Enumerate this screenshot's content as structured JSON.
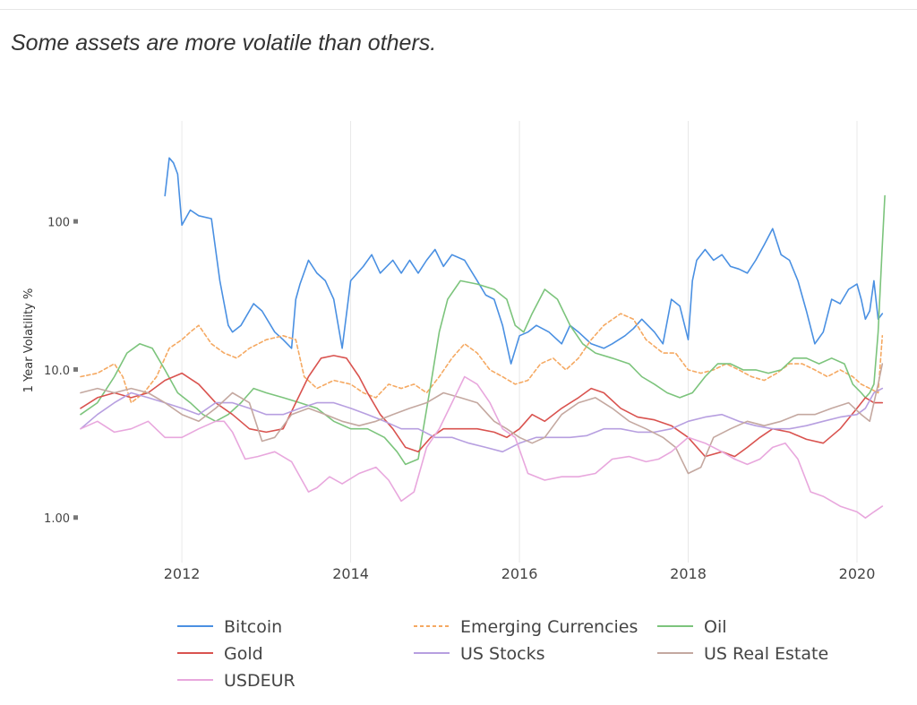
{
  "headline": "Some assets are more volatile than others.",
  "chart_data": {
    "type": "line",
    "title": "",
    "xlabel": "",
    "ylabel": "1 Year Volatility %",
    "yscale": "log",
    "xlim": [
      2010.8,
      2020.35
    ],
    "ylim": [
      0.5,
      480
    ],
    "xticks": [
      2012,
      2014,
      2016,
      2018,
      2020
    ],
    "xtick_labels": [
      "2012",
      "2014",
      "2016",
      "2018",
      "2020"
    ],
    "yticks": [
      1,
      10,
      100
    ],
    "ytick_labels": [
      "1.00",
      "10.0",
      "100"
    ],
    "grid": "vertical",
    "legend_position": "bottom",
    "series": [
      {
        "name": "Bitcoin",
        "color": "#4a90e2",
        "dash": "solid",
        "x": [
          2011.8,
          2011.85,
          2011.9,
          2011.95,
          2012.0,
          2012.1,
          2012.2,
          2012.35,
          2012.45,
          2012.55,
          2012.6,
          2012.7,
          2012.85,
          2012.95,
          2013.1,
          2013.2,
          2013.3,
          2013.35,
          2013.4,
          2013.5,
          2013.6,
          2013.7,
          2013.8,
          2013.9,
          2014.0,
          2014.15,
          2014.25,
          2014.35,
          2014.5,
          2014.6,
          2014.7,
          2014.8,
          2014.9,
          2015.0,
          2015.1,
          2015.2,
          2015.35,
          2015.5,
          2015.6,
          2015.7,
          2015.8,
          2015.9,
          2016.0,
          2016.1,
          2016.2,
          2016.35,
          2016.5,
          2016.6,
          2016.7,
          2016.85,
          2017.0,
          2017.1,
          2017.25,
          2017.35,
          2017.45,
          2017.6,
          2017.7,
          2017.8,
          2017.9,
          2018.0,
          2018.05,
          2018.1,
          2018.2,
          2018.3,
          2018.4,
          2018.5,
          2018.6,
          2018.7,
          2018.8,
          2018.9,
          2019.0,
          2019.1,
          2019.2,
          2019.3,
          2019.4,
          2019.5,
          2019.6,
          2019.7,
          2019.8,
          2019.9,
          2020.0,
          2020.05,
          2020.1,
          2020.15,
          2020.2,
          2020.25,
          2020.3
        ],
        "y": [
          150,
          270,
          250,
          210,
          95,
          120,
          110,
          105,
          40,
          20,
          18,
          20,
          28,
          25,
          18,
          16,
          14,
          30,
          38,
          55,
          45,
          40,
          30,
          14,
          40,
          50,
          60,
          45,
          55,
          45,
          55,
          45,
          55,
          65,
          50,
          60,
          55,
          40,
          32,
          30,
          20,
          11,
          17,
          18,
          20,
          18,
          15,
          20,
          18,
          15,
          14,
          15,
          17,
          19,
          22,
          18,
          15,
          30,
          27,
          16,
          40,
          55,
          65,
          55,
          60,
          50,
          48,
          45,
          55,
          70,
          90,
          60,
          55,
          40,
          25,
          15,
          18,
          30,
          28,
          35,
          38,
          30,
          22,
          25,
          40,
          22,
          24
        ]
      },
      {
        "name": "Emerging Currencies",
        "color": "#f5a962",
        "dash": "dashed",
        "x": [
          2010.8,
          2011.0,
          2011.2,
          2011.3,
          2011.4,
          2011.55,
          2011.7,
          2011.85,
          2012.0,
          2012.1,
          2012.2,
          2012.35,
          2012.5,
          2012.65,
          2012.8,
          2013.0,
          2013.2,
          2013.35,
          2013.45,
          2013.6,
          2013.8,
          2014.0,
          2014.15,
          2014.3,
          2014.45,
          2014.6,
          2014.75,
          2014.9,
          2015.05,
          2015.2,
          2015.35,
          2015.5,
          2015.65,
          2015.8,
          2015.95,
          2016.1,
          2016.25,
          2016.4,
          2016.55,
          2016.7,
          2016.85,
          2017.0,
          2017.2,
          2017.35,
          2017.5,
          2017.7,
          2017.85,
          2018.0,
          2018.15,
          2018.3,
          2018.45,
          2018.6,
          2018.75,
          2018.9,
          2019.05,
          2019.2,
          2019.35,
          2019.5,
          2019.65,
          2019.8,
          2019.95,
          2020.05,
          2020.15,
          2020.25,
          2020.3
        ],
        "y": [
          9,
          9.5,
          11,
          9,
          6,
          7,
          9,
          14,
          16,
          18,
          20,
          15,
          13,
          12,
          14,
          16,
          17,
          16,
          9,
          7.5,
          8.5,
          8,
          7,
          6.5,
          8,
          7.5,
          8,
          7,
          9,
          12,
          15,
          13,
          10,
          9,
          8,
          8.5,
          11,
          12,
          10,
          12,
          16,
          20,
          24,
          22,
          16,
          13,
          13,
          10,
          9.5,
          10,
          11,
          10,
          9,
          8.5,
          9.5,
          11,
          11,
          10,
          9,
          10,
          9,
          8,
          7.5,
          7,
          17
        ]
      },
      {
        "name": "Oil",
        "color": "#7cc47c",
        "dash": "solid",
        "x": [
          2010.8,
          2011.0,
          2011.2,
          2011.35,
          2011.5,
          2011.65,
          2011.8,
          2011.95,
          2012.1,
          2012.25,
          2012.4,
          2012.55,
          2012.7,
          2012.85,
          2013.0,
          2013.2,
          2013.4,
          2013.6,
          2013.8,
          2014.0,
          2014.2,
          2014.4,
          2014.55,
          2014.65,
          2014.8,
          2014.95,
          2015.05,
          2015.15,
          2015.3,
          2015.5,
          2015.7,
          2015.85,
          2015.95,
          2016.05,
          2016.15,
          2016.3,
          2016.45,
          2016.6,
          2016.75,
          2016.9,
          2017.1,
          2017.3,
          2017.45,
          2017.6,
          2017.75,
          2017.9,
          2018.05,
          2018.2,
          2018.35,
          2018.5,
          2018.65,
          2018.8,
          2018.95,
          2019.1,
          2019.25,
          2019.4,
          2019.55,
          2019.7,
          2019.85,
          2019.95,
          2020.05,
          2020.1,
          2020.15,
          2020.2,
          2020.25,
          2020.3,
          2020.33
        ],
        "y": [
          5,
          6,
          9,
          13,
          15,
          14,
          10,
          7,
          6,
          5,
          4.5,
          5,
          6,
          7.5,
          7,
          6.5,
          6,
          5.5,
          4.5,
          4,
          4,
          3.5,
          2.8,
          2.3,
          2.5,
          8,
          18,
          30,
          40,
          38,
          35,
          30,
          20,
          18,
          24,
          35,
          30,
          20,
          15,
          13,
          12,
          11,
          9,
          8,
          7,
          6.5,
          7,
          9,
          11,
          11,
          10,
          10,
          9.5,
          10,
          12,
          12,
          11,
          12,
          11,
          8,
          7,
          6.5,
          7,
          8,
          18,
          70,
          150
        ]
      },
      {
        "name": "Gold",
        "color": "#d9534f",
        "dash": "solid",
        "x": [
          2010.8,
          2011.0,
          2011.2,
          2011.4,
          2011.6,
          2011.8,
          2012.0,
          2012.2,
          2012.4,
          2012.6,
          2012.8,
          2013.0,
          2013.2,
          2013.35,
          2013.5,
          2013.65,
          2013.8,
          2013.95,
          2014.1,
          2014.2,
          2014.35,
          2014.5,
          2014.65,
          2014.8,
          2014.95,
          2015.1,
          2015.3,
          2015.5,
          2015.7,
          2015.85,
          2016.0,
          2016.15,
          2016.3,
          2016.5,
          2016.7,
          2016.85,
          2017.0,
          2017.2,
          2017.4,
          2017.6,
          2017.8,
          2018.0,
          2018.2,
          2018.4,
          2018.55,
          2018.7,
          2018.85,
          2019.0,
          2019.2,
          2019.4,
          2019.6,
          2019.8,
          2020.0,
          2020.1,
          2020.2,
          2020.3
        ],
        "y": [
          5.5,
          6.5,
          7,
          6.5,
          7,
          8.5,
          9.5,
          8,
          6,
          5,
          4,
          3.8,
          4,
          6,
          9,
          12,
          12.5,
          12,
          9,
          7,
          5,
          4,
          3,
          2.8,
          3.5,
          4,
          4,
          4,
          3.8,
          3.5,
          4,
          5,
          4.5,
          5.5,
          6.5,
          7.5,
          7,
          5.5,
          4.8,
          4.6,
          4.2,
          3.5,
          2.6,
          2.8,
          2.6,
          3,
          3.5,
          4,
          3.8,
          3.4,
          3.2,
          4,
          5.5,
          6.5,
          6,
          6
        ]
      },
      {
        "name": "US Stocks",
        "color": "#b79fe0",
        "dash": "solid",
        "x": [
          2010.8,
          2011.0,
          2011.2,
          2011.4,
          2011.6,
          2011.8,
          2012.0,
          2012.2,
          2012.4,
          2012.6,
          2012.8,
          2013.0,
          2013.2,
          2013.4,
          2013.6,
          2013.8,
          2014.0,
          2014.2,
          2014.4,
          2014.6,
          2014.8,
          2015.0,
          2015.2,
          2015.4,
          2015.6,
          2015.8,
          2016.0,
          2016.2,
          2016.4,
          2016.6,
          2016.8,
          2017.0,
          2017.2,
          2017.4,
          2017.6,
          2017.8,
          2018.0,
          2018.2,
          2018.4,
          2018.6,
          2018.8,
          2019.0,
          2019.2,
          2019.4,
          2019.6,
          2019.8,
          2020.0,
          2020.1,
          2020.2,
          2020.3
        ],
        "y": [
          4,
          5,
          6,
          7,
          6.5,
          6,
          5.5,
          5,
          6,
          6,
          5.5,
          5,
          5,
          5.5,
          6,
          6,
          5.5,
          5,
          4.5,
          4,
          4,
          3.5,
          3.5,
          3.2,
          3,
          2.8,
          3.2,
          3.5,
          3.5,
          3.5,
          3.6,
          4,
          4,
          3.8,
          3.8,
          4,
          4.5,
          4.8,
          5,
          4.5,
          4.2,
          4,
          4,
          4.2,
          4.5,
          4.8,
          5,
          5.5,
          7,
          7.5
        ]
      },
      {
        "name": "US Real Estate",
        "color": "#c4a8a0",
        "dash": "solid",
        "x": [
          2010.8,
          2011.0,
          2011.2,
          2011.4,
          2011.6,
          2011.8,
          2012.0,
          2012.2,
          2012.4,
          2012.6,
          2012.8,
          2012.95,
          2013.1,
          2013.3,
          2013.5,
          2013.7,
          2013.9,
          2014.1,
          2014.3,
          2014.5,
          2014.7,
          2014.9,
          2015.1,
          2015.3,
          2015.5,
          2015.7,
          2015.85,
          2016.0,
          2016.15,
          2016.3,
          2016.5,
          2016.7,
          2016.9,
          2017.1,
          2017.3,
          2017.5,
          2017.7,
          2017.85,
          2018.0,
          2018.15,
          2018.3,
          2018.5,
          2018.7,
          2018.9,
          2019.1,
          2019.3,
          2019.5,
          2019.7,
          2019.9,
          2020.05,
          2020.15,
          2020.25,
          2020.3
        ],
        "y": [
          7,
          7.5,
          7,
          7.5,
          7,
          6,
          5,
          4.5,
          5.5,
          7,
          6,
          3.3,
          3.5,
          5,
          5.5,
          5,
          4.5,
          4.2,
          4.5,
          5,
          5.5,
          6,
          7,
          6.5,
          6,
          4.5,
          4,
          3.5,
          3.2,
          3.5,
          5,
          6,
          6.5,
          5.5,
          4.5,
          4,
          3.5,
          3,
          2,
          2.2,
          3.5,
          4,
          4.5,
          4.2,
          4.5,
          5,
          5,
          5.5,
          6,
          5,
          4.5,
          8,
          11
        ]
      },
      {
        "name": "USDEUR",
        "color": "#e8a7dd",
        "dash": "solid",
        "x": [
          2010.8,
          2011.0,
          2011.2,
          2011.4,
          2011.6,
          2011.8,
          2012.0,
          2012.2,
          2012.4,
          2012.5,
          2012.6,
          2012.75,
          2012.9,
          2013.1,
          2013.3,
          2013.5,
          2013.6,
          2013.75,
          2013.9,
          2014.1,
          2014.3,
          2014.45,
          2014.6,
          2014.75,
          2014.9,
          2015.05,
          2015.2,
          2015.35,
          2015.5,
          2015.65,
          2015.8,
          2015.95,
          2016.1,
          2016.3,
          2016.5,
          2016.7,
          2016.9,
          2017.1,
          2017.3,
          2017.5,
          2017.65,
          2017.8,
          2018.0,
          2018.2,
          2018.4,
          2018.55,
          2018.7,
          2018.85,
          2019.0,
          2019.15,
          2019.3,
          2019.45,
          2019.6,
          2019.8,
          2020.0,
          2020.1,
          2020.2,
          2020.3
        ],
        "y": [
          4,
          4.5,
          3.8,
          4,
          4.5,
          3.5,
          3.5,
          4,
          4.5,
          4.5,
          3.8,
          2.5,
          2.6,
          2.8,
          2.4,
          1.5,
          1.6,
          1.9,
          1.7,
          2,
          2.2,
          1.8,
          1.3,
          1.5,
          3,
          4,
          6,
          9,
          8,
          6,
          4,
          3.5,
          2,
          1.8,
          1.9,
          1.9,
          2,
          2.5,
          2.6,
          2.4,
          2.5,
          2.8,
          3.5,
          3.2,
          2.8,
          2.5,
          2.3,
          2.5,
          3,
          3.2,
          2.5,
          1.5,
          1.4,
          1.2,
          1.1,
          1.0,
          1.1,
          1.2
        ]
      }
    ]
  }
}
